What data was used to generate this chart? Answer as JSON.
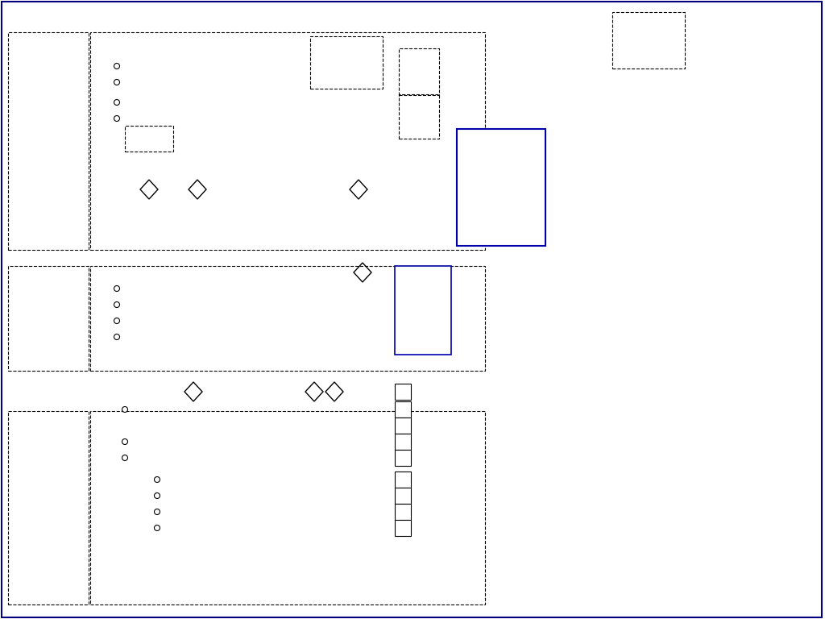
{
  "bg_color": "#ffffff",
  "fig_w": 10.24,
  "fig_h": 7.68,
  "dpi": 100
}
